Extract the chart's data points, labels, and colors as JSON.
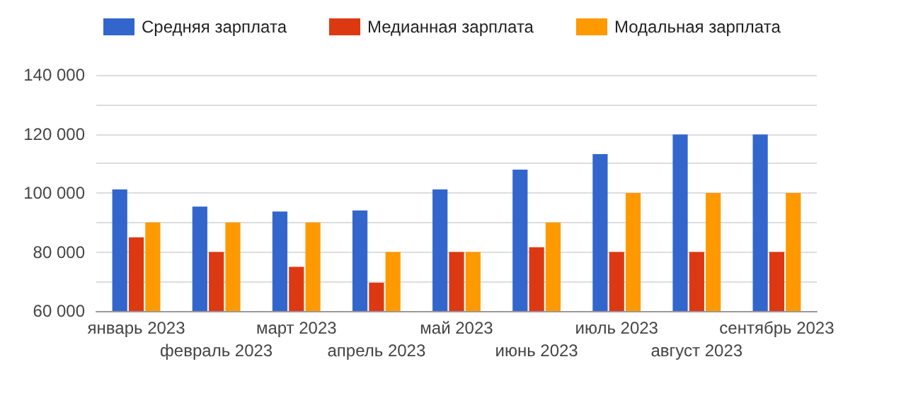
{
  "chart_data": {
    "type": "bar",
    "categories": [
      "январь 2023",
      "февраль 2023",
      "март 2023",
      "апрель 2023",
      "май 2023",
      "июнь 2023",
      "июль 2023",
      "август 2023",
      "сентябрь 2023"
    ],
    "series": [
      {
        "name": "Средняя зарплата",
        "color": "#3366cc",
        "values": [
          101200,
          95400,
          93700,
          94100,
          101200,
          107900,
          113200,
          119800,
          119800
        ]
      },
      {
        "name": "Медианная зарплата",
        "color": "#dc3912",
        "values": [
          85000,
          80000,
          75000,
          69600,
          80000,
          81600,
          80000,
          80000,
          80000
        ]
      },
      {
        "name": "Модальная зарплата",
        "color": "#ff9900",
        "values": [
          90000,
          90000,
          90000,
          80000,
          80000,
          90000,
          100000,
          100000,
          100000
        ]
      }
    ],
    "ylim": [
      60000,
      140000
    ],
    "yticks": [
      {
        "value": 60000,
        "label": "60 000"
      },
      {
        "value": 70000,
        "label": null
      },
      {
        "value": 80000,
        "label": "80 000"
      },
      {
        "value": 90000,
        "label": null
      },
      {
        "value": 100000,
        "label": "100 000"
      },
      {
        "value": 110000,
        "label": null
      },
      {
        "value": 120000,
        "label": "120 000"
      },
      {
        "value": 130000,
        "label": null
      },
      {
        "value": 140000,
        "label": "140 000"
      }
    ],
    "grid": "y",
    "legend": "top left"
  }
}
